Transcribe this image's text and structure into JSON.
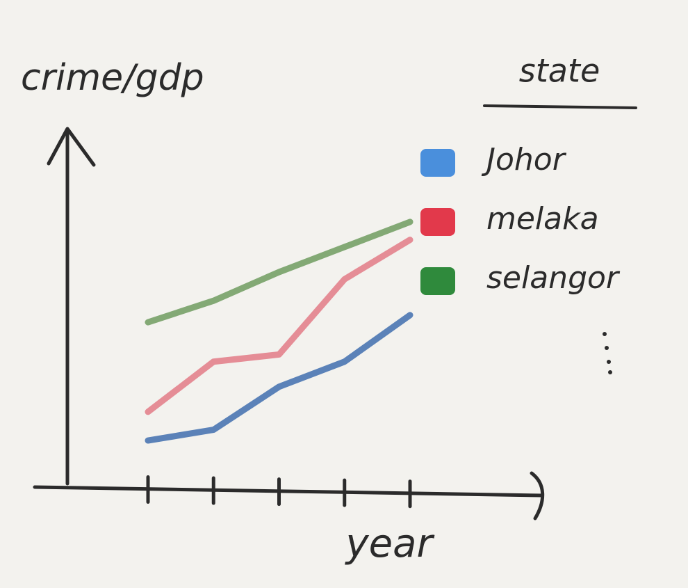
{
  "chart_data": {
    "type": "line",
    "ylabel": "crime/gdp",
    "xlabel": "year",
    "legend_title": "state",
    "legend": "right",
    "categories": [
      null,
      null,
      null,
      null,
      null
    ],
    "ylim": [
      0,
      10
    ],
    "series": [
      {
        "name": "Johor",
        "color": "#3f6fae",
        "marker_color": "#4a8fdc",
        "values": [
          1.3,
          1.6,
          2.8,
          3.5,
          4.8
        ]
      },
      {
        "name": "melaka",
        "color": "#e27b86",
        "marker_color": "#e2394b",
        "values": [
          2.1,
          3.5,
          3.7,
          5.8,
          6.9
        ]
      },
      {
        "name": "selangor",
        "color": "#6f9c5f",
        "marker_color": "#2f8a3c",
        "values": [
          4.6,
          5.2,
          6.0,
          6.7,
          7.4
        ]
      }
    ]
  }
}
